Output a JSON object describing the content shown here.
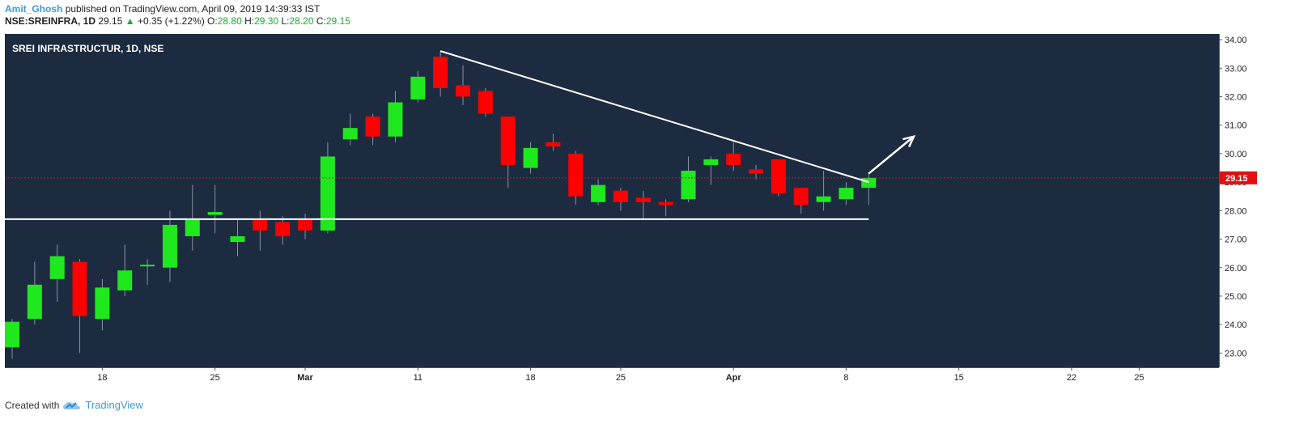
{
  "header": {
    "author": "Amit_Ghosh",
    "published_text": "published on TradingView.com, April 09, 2019 14:39:33 IST",
    "symbol": "NSE:SREINFRA, 1D",
    "last": "29.15",
    "change": "+0.35 (+1.22%)",
    "o_label": "O:",
    "o_value": "28.80",
    "h_label": "H:",
    "h_value": "29.30",
    "l_label": "L:",
    "l_value": "28.20",
    "c_label": "C:",
    "c_value": "29.15"
  },
  "footer": {
    "created_with": "Created with",
    "brand": "TradingView"
  },
  "chart_data": {
    "type": "candlestick",
    "title": "SREI INFRASTRUCTUR, 1D, NSE",
    "price_tag": "29.15",
    "ylim": [
      22.5,
      34.2
    ],
    "y_ticks": [
      "23.00",
      "24.00",
      "25.00",
      "26.00",
      "27.00",
      "28.00",
      "29.00",
      "30.00",
      "31.00",
      "32.00",
      "33.00",
      "34.00"
    ],
    "x_ticks": [
      {
        "label": "18",
        "bar": 4
      },
      {
        "label": "25",
        "bar": 9
      },
      {
        "label": "Mar",
        "bar": 13
      },
      {
        "label": "11",
        "bar": 18
      },
      {
        "label": "18",
        "bar": 23
      },
      {
        "label": "25",
        "bar": 27
      },
      {
        "label": "Apr",
        "bar": 32
      },
      {
        "label": "8",
        "bar": 37
      },
      {
        "label": "15",
        "bar": 42
      },
      {
        "label": "22",
        "bar": 47
      },
      {
        "label": "25",
        "bar": 50
      }
    ],
    "candles": [
      {
        "o": 23.2,
        "h": 24.2,
        "l": 22.8,
        "c": 24.1
      },
      {
        "o": 24.2,
        "h": 26.2,
        "l": 24.0,
        "c": 25.4
      },
      {
        "o": 25.6,
        "h": 26.8,
        "l": 24.8,
        "c": 26.4
      },
      {
        "o": 26.2,
        "h": 26.3,
        "l": 23.0,
        "c": 24.3
      },
      {
        "o": 24.2,
        "h": 25.6,
        "l": 23.8,
        "c": 25.3
      },
      {
        "o": 25.2,
        "h": 26.8,
        "l": 25.0,
        "c": 25.9
      },
      {
        "o": 26.1,
        "h": 26.3,
        "l": 25.4,
        "c": 26.1
      },
      {
        "o": 26.0,
        "h": 28.0,
        "l": 25.5,
        "c": 27.5
      },
      {
        "o": 27.1,
        "h": 28.9,
        "l": 26.6,
        "c": 27.7
      },
      {
        "o": 27.85,
        "h": 28.9,
        "l": 27.2,
        "c": 27.95
      },
      {
        "o": 26.9,
        "h": 27.7,
        "l": 26.4,
        "c": 27.1
      },
      {
        "o": 27.7,
        "h": 28.0,
        "l": 26.6,
        "c": 27.3
      },
      {
        "o": 27.6,
        "h": 27.8,
        "l": 26.8,
        "c": 27.1
      },
      {
        "o": 27.7,
        "h": 27.9,
        "l": 27.0,
        "c": 27.3
      },
      {
        "o": 27.3,
        "h": 30.4,
        "l": 27.2,
        "c": 29.9
      },
      {
        "o": 30.5,
        "h": 31.4,
        "l": 30.3,
        "c": 30.9
      },
      {
        "o": 31.3,
        "h": 31.4,
        "l": 30.3,
        "c": 30.6
      },
      {
        "o": 30.6,
        "h": 32.2,
        "l": 30.4,
        "c": 31.8
      },
      {
        "o": 31.9,
        "h": 32.9,
        "l": 31.8,
        "c": 32.7
      },
      {
        "o": 33.4,
        "h": 33.6,
        "l": 32.0,
        "c": 32.3
      },
      {
        "o": 32.4,
        "h": 33.1,
        "l": 31.7,
        "c": 32.0
      },
      {
        "o": 32.2,
        "h": 32.3,
        "l": 31.3,
        "c": 31.4
      },
      {
        "o": 31.3,
        "h": 31.3,
        "l": 28.8,
        "c": 29.6
      },
      {
        "o": 29.5,
        "h": 30.4,
        "l": 29.3,
        "c": 30.2
      },
      {
        "o": 30.4,
        "h": 30.7,
        "l": 30.1,
        "c": 30.25
      },
      {
        "o": 30.0,
        "h": 30.1,
        "l": 28.2,
        "c": 28.5
      },
      {
        "o": 28.3,
        "h": 29.1,
        "l": 28.2,
        "c": 28.9
      },
      {
        "o": 28.7,
        "h": 28.8,
        "l": 28.0,
        "c": 28.3
      },
      {
        "o": 28.45,
        "h": 28.7,
        "l": 27.7,
        "c": 28.3
      },
      {
        "o": 28.3,
        "h": 28.4,
        "l": 27.8,
        "c": 28.2
      },
      {
        "o": 28.4,
        "h": 29.9,
        "l": 28.3,
        "c": 29.4
      },
      {
        "o": 29.6,
        "h": 29.9,
        "l": 28.9,
        "c": 29.8
      },
      {
        "o": 30.0,
        "h": 30.4,
        "l": 29.4,
        "c": 29.6
      },
      {
        "o": 29.45,
        "h": 29.6,
        "l": 29.1,
        "c": 29.3
      },
      {
        "o": 29.8,
        "h": 29.8,
        "l": 28.5,
        "c": 28.6
      },
      {
        "o": 28.8,
        "h": 28.8,
        "l": 27.9,
        "c": 28.2
      },
      {
        "o": 28.3,
        "h": 29.4,
        "l": 28.0,
        "c": 28.5
      },
      {
        "o": 28.4,
        "h": 29.0,
        "l": 28.2,
        "c": 28.8
      },
      {
        "o": 28.8,
        "h": 29.3,
        "l": 28.2,
        "c": 29.15
      }
    ],
    "annotations": {
      "support_line": {
        "price": 27.7,
        "from_bar": -3,
        "to_bar": 38
      },
      "resistance_line": {
        "from": {
          "bar": 19,
          "price": 33.6
        },
        "to": {
          "bar": 38,
          "price": 29.0
        }
      },
      "arrow": {
        "from": {
          "bar": 38,
          "price": 29.3
        },
        "to": {
          "bar": 40,
          "price": 30.6
        }
      }
    },
    "colors": {
      "background": "#1c2b40",
      "up": "#1fe81f",
      "down": "#ff0000",
      "wick": "#8a93a0",
      "grid_text": "#222222",
      "drawing": "#ffffff",
      "price_line": "#d11a1a"
    }
  }
}
